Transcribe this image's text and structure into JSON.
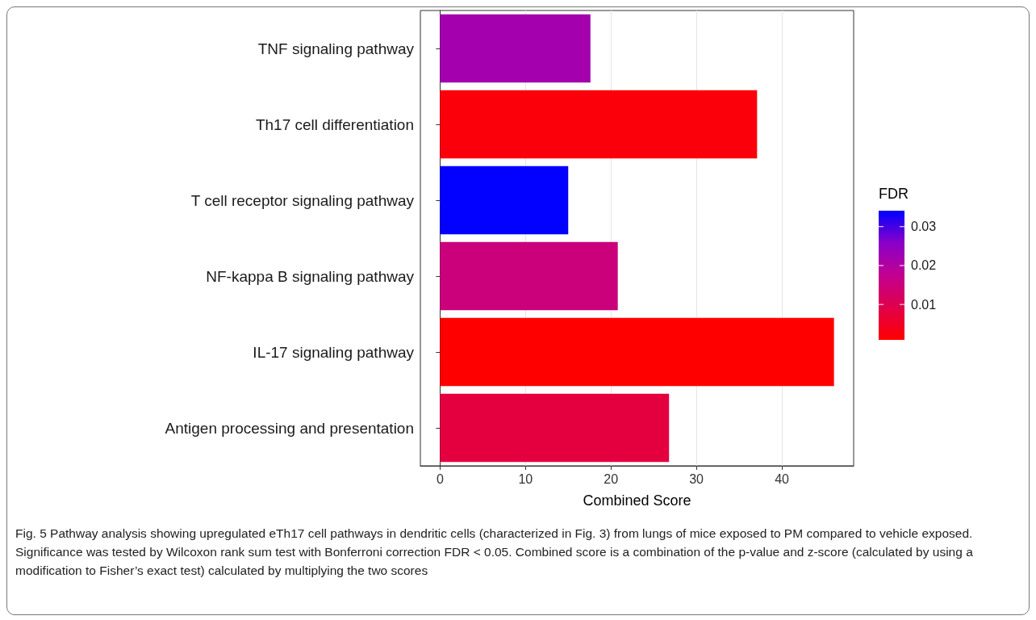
{
  "chart_data": {
    "type": "bar",
    "orientation": "horizontal",
    "categories": [
      "TNF signaling pathway",
      "Th17 cell differentiation",
      "T cell receptor signaling pathway",
      "NF-kappa B signaling pathway",
      "IL-17 signaling pathway",
      "Antigen processing and presentation"
    ],
    "values": [
      17.6,
      37.1,
      15.0,
      20.8,
      46.1,
      26.8
    ],
    "cvalues": [
      0.022,
      0.002,
      0.034,
      0.015,
      0.001,
      0.008
    ],
    "xlabel": "Combined Score",
    "clabel": "FDR",
    "xlim": [
      -2.3,
      48.4
    ],
    "xticks": [
      0,
      10,
      20,
      30,
      40
    ],
    "clim": [
      0.0009,
      0.0341
    ],
    "cticks": [
      0.01,
      0.02,
      0.03
    ],
    "grid": "x",
    "annotations": [
      "Fig. 5 Pathway analysis showing upregulated eTh17 cell pathways in dendritic cells (characterized in Fig. 3) from lungs of mice exposed to PM compared to vehicle exposed. Significance was tested by Wilcoxon rank sum test with Bonferroni correction FDR < 0.05. Combined score is a combination of the p-value and z-score (calculated by using a modification to Fisher’s exact test) calculated by multiplying the two scores"
    ]
  }
}
